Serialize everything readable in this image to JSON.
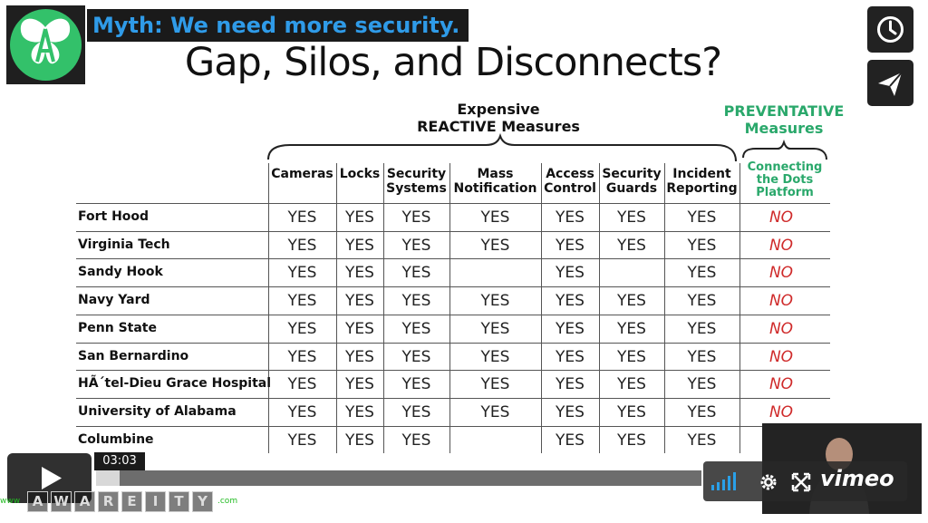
{
  "slide": {
    "myth_banner": "Myth: We need more security.",
    "title": "Gap, Silos, and Disconnects?",
    "reactive_group_line1": "Expensive",
    "reactive_group_line2": "REACTIVE Measures",
    "preventative_group_line1": "PREVENTATIVE",
    "preventative_group_line2": "Measures"
  },
  "table": {
    "columns": [
      {
        "l1": "Cameras",
        "l2": ""
      },
      {
        "l1": "Locks",
        "l2": ""
      },
      {
        "l1": "Security",
        "l2": "Systems"
      },
      {
        "l1": "Mass",
        "l2": "Notification"
      },
      {
        "l1": "Access",
        "l2": "Control"
      },
      {
        "l1": "Security",
        "l2": "Guards"
      },
      {
        "l1": "Incident",
        "l2": "Reporting"
      }
    ],
    "preventative_column": {
      "l1": "Connecting",
      "l2": "the Dots",
      "l3": "Platform"
    },
    "rows": [
      {
        "label": "Fort Hood",
        "cells": [
          "YES",
          "YES",
          "YES",
          "YES",
          "YES",
          "YES",
          "YES"
        ],
        "prev": "NO"
      },
      {
        "label": "Virginia Tech",
        "cells": [
          "YES",
          "YES",
          "YES",
          "YES",
          "YES",
          "YES",
          "YES"
        ],
        "prev": "NO"
      },
      {
        "label": "Sandy Hook",
        "cells": [
          "YES",
          "YES",
          "YES",
          "",
          "YES",
          "",
          "YES"
        ],
        "prev": "NO"
      },
      {
        "label": "Navy Yard",
        "cells": [
          "YES",
          "YES",
          "YES",
          "YES",
          "YES",
          "YES",
          "YES"
        ],
        "prev": "NO"
      },
      {
        "label": "Penn State",
        "cells": [
          "YES",
          "YES",
          "YES",
          "YES",
          "YES",
          "YES",
          "YES"
        ],
        "prev": "NO"
      },
      {
        "label": "San Bernardino",
        "cells": [
          "YES",
          "YES",
          "YES",
          "YES",
          "YES",
          "YES",
          "YES"
        ],
        "prev": "NO"
      },
      {
        "label": "HÃ´tel-Dieu Grace Hospital",
        "cells": [
          "YES",
          "YES",
          "YES",
          "YES",
          "YES",
          "YES",
          "YES"
        ],
        "prev": "NO"
      },
      {
        "label": "University of Alabama",
        "cells": [
          "YES",
          "YES",
          "YES",
          "YES",
          "YES",
          "YES",
          "YES"
        ],
        "prev": "NO"
      },
      {
        "label": "Columbine",
        "cells": [
          "YES",
          "YES",
          "YES",
          "",
          "YES",
          "YES",
          "YES"
        ],
        "prev": ""
      }
    ]
  },
  "player": {
    "time_label": "03:03",
    "brand": "vimeo",
    "icons": {
      "watch_later": "clock-icon",
      "share": "send-icon",
      "play": "play-icon",
      "volume": "volume-icon",
      "settings": "gear-icon",
      "fullscreen": "fullscreen-icon"
    },
    "watermark_letters": [
      "A",
      "W",
      "A",
      "R",
      "E",
      "I",
      "T",
      "Y"
    ],
    "watermark_suffix": ".com"
  },
  "colors": {
    "accent_blue": "#2f9be8",
    "green": "#2aa86b",
    "no_red": "#cf2a2a"
  }
}
